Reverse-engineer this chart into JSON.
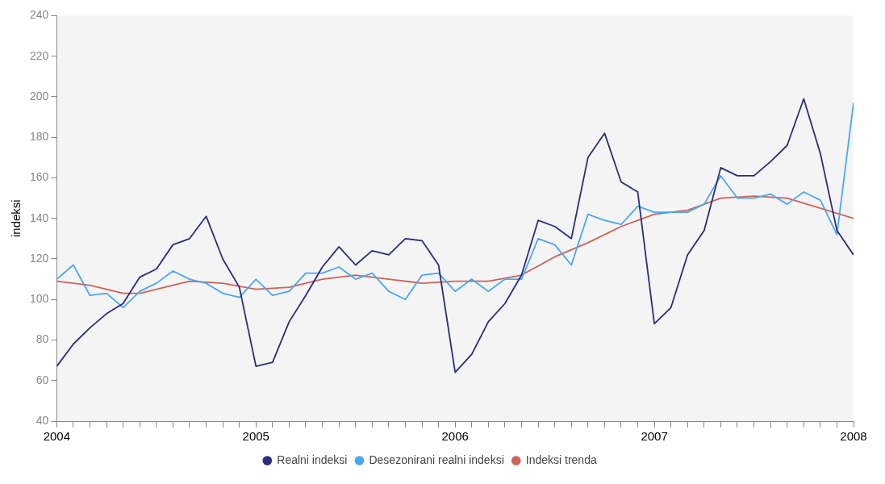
{
  "chart_data": {
    "type": "line",
    "ylabel": "indeksi",
    "xlim": [
      "2004-01",
      "2008-01"
    ],
    "ylim": [
      40,
      240
    ],
    "yticks": [
      40,
      60,
      80,
      100,
      120,
      140,
      160,
      180,
      200,
      220,
      240
    ],
    "xticks": [
      "2004",
      {
        "value": "2004-02",
        "label": null
      },
      {
        "value": "2004-03",
        "label": null
      },
      {
        "value": "2004-04",
        "label": null
      },
      {
        "value": "2004-05",
        "label": null
      },
      {
        "value": "2004-06",
        "label": null
      },
      {
        "value": "2004-07",
        "label": null
      },
      {
        "value": "2004-08",
        "label": null
      },
      {
        "value": "2004-09",
        "label": null
      },
      {
        "value": "2004-10",
        "label": null
      },
      {
        "value": "2004-11",
        "label": null
      },
      {
        "value": "2004-12",
        "label": null
      },
      "2005",
      {
        "value": "2005-02",
        "label": null
      },
      {
        "value": "2005-03",
        "label": null
      },
      {
        "value": "2005-04",
        "label": null
      },
      {
        "value": "2005-05",
        "label": null
      },
      {
        "value": "2005-06",
        "label": null
      },
      {
        "value": "2005-07",
        "label": null
      },
      {
        "value": "2005-08",
        "label": null
      },
      {
        "value": "2005-09",
        "label": null
      },
      {
        "value": "2005-10",
        "label": null
      },
      {
        "value": "2005-11",
        "label": null
      },
      {
        "value": "2005-12",
        "label": null
      },
      "2006",
      {
        "value": "2006-02",
        "label": null
      },
      {
        "value": "2006-03",
        "label": null
      },
      {
        "value": "2006-04",
        "label": null
      },
      {
        "value": "2006-05",
        "label": null
      },
      {
        "value": "2006-06",
        "label": null
      },
      {
        "value": "2006-07",
        "label": null
      },
      {
        "value": "2006-08",
        "label": null
      },
      {
        "value": "2006-09",
        "label": null
      },
      {
        "value": "2006-10",
        "label": null
      },
      {
        "value": "2006-11",
        "label": null
      },
      {
        "value": "2006-12",
        "label": null
      },
      "2007",
      {
        "value": "2007-02",
        "label": null
      },
      {
        "value": "2007-03",
        "label": null
      },
      {
        "value": "2007-04",
        "label": null
      },
      {
        "value": "2007-05",
        "label": null
      },
      {
        "value": "2007-06",
        "label": null
      },
      {
        "value": "2007-07",
        "label": null
      },
      {
        "value": "2007-08",
        "label": null
      },
      {
        "value": "2007-09",
        "label": null
      },
      {
        "value": "2007-10",
        "label": null
      },
      {
        "value": "2007-11",
        "label": null
      },
      {
        "value": "2007-12",
        "label": null
      },
      "2008"
    ],
    "x": [
      "2004-01",
      "2004-02",
      "2004-03",
      "2004-04",
      "2004-05",
      "2004-06",
      "2004-07",
      "2004-08",
      "2004-09",
      "2004-10",
      "2004-11",
      "2004-12",
      "2005-01",
      "2005-02",
      "2005-03",
      "2005-04",
      "2005-05",
      "2005-06",
      "2005-07",
      "2005-08",
      "2005-09",
      "2005-10",
      "2005-11",
      "2005-12",
      "2006-01",
      "2006-02",
      "2006-03",
      "2006-04",
      "2006-05",
      "2006-06",
      "2006-07",
      "2006-08",
      "2006-09",
      "2006-10",
      "2006-11",
      "2006-12",
      "2007-01",
      "2007-02",
      "2007-03",
      "2007-04",
      "2007-05",
      "2007-06",
      "2007-07",
      "2007-08",
      "2007-09",
      "2007-10",
      "2007-11",
      "2007-12",
      "2008-01"
    ],
    "series": [
      {
        "name": "Realni indeksi",
        "color": "#2b2b7f",
        "values": [
          67,
          78,
          86,
          93,
          98,
          111,
          115,
          127,
          130,
          141,
          120,
          106,
          67,
          69,
          89,
          102,
          116,
          126,
          117,
          124,
          122,
          130,
          129,
          117,
          64,
          73,
          89,
          98,
          112,
          139,
          136,
          130,
          170,
          182,
          158,
          153,
          88,
          96,
          122,
          134,
          165,
          161,
          161,
          168,
          176,
          199,
          172,
          134,
          122
        ]
      },
      {
        "name": "Desezonirani realni indeksi",
        "color": "#4aa8f0",
        "values": [
          110,
          117,
          102,
          103,
          96,
          104,
          108,
          114,
          110,
          108,
          103,
          101,
          110,
          102,
          104,
          113,
          113,
          116,
          110,
          113,
          104,
          100,
          112,
          113,
          104,
          110,
          104,
          110,
          110,
          130,
          127,
          117,
          142,
          139,
          137,
          146,
          143,
          143,
          143,
          147,
          161,
          150,
          150,
          152,
          147,
          153,
          149,
          132,
          197
        ]
      },
      {
        "name": "Indeksi trenda",
        "color": "#d0605a",
        "x": [
          "2004-01",
          "2004-03",
          "2004-05",
          "2004-06",
          "2004-07",
          "2004-09",
          "2004-11",
          "2005-01",
          "2005-03",
          "2005-05",
          "2005-07",
          "2005-09",
          "2005-11",
          "2006-01",
          "2006-03",
          "2006-05",
          "2006-07",
          "2006-09",
          "2006-11",
          "2007-01",
          "2007-03",
          "2007-05",
          "2007-07",
          "2007-09",
          "2007-11",
          "2008-01"
        ],
        "values": [
          109,
          107,
          103,
          103,
          105,
          109,
          108,
          105,
          106,
          110,
          112,
          110,
          108,
          109,
          109,
          112,
          121,
          128,
          136,
          142,
          144,
          150,
          151,
          150,
          145,
          140
        ]
      }
    ],
    "grid": false,
    "legend": "bottom",
    "marker": "none",
    "line_style": "solid"
  }
}
